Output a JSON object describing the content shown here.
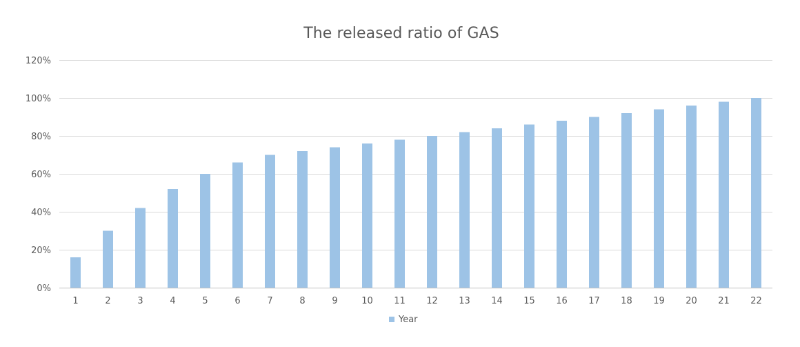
{
  "chart_data": {
    "type": "bar",
    "title": "The released ratio of GAS",
    "xlabel": "",
    "ylabel": "",
    "categories": [
      "1",
      "2",
      "3",
      "4",
      "5",
      "6",
      "7",
      "8",
      "9",
      "10",
      "11",
      "12",
      "13",
      "14",
      "15",
      "16",
      "17",
      "18",
      "19",
      "20",
      "21",
      "22"
    ],
    "series": [
      {
        "name": "Year",
        "values": [
          16,
          30,
          42,
          52,
          60,
          66,
          70,
          72,
          74,
          76,
          78,
          80,
          82,
          84,
          86,
          88,
          90,
          92,
          94,
          96,
          98,
          100
        ]
      }
    ],
    "ylim": [
      0,
      120
    ],
    "yticks": [
      0,
      20,
      40,
      60,
      80,
      100,
      120
    ],
    "ytick_labels": [
      "0%",
      "20%",
      "40%",
      "60%",
      "80%",
      "100%",
      "120%"
    ],
    "grid": true,
    "legend_position": "bottom",
    "colors": {
      "bar": "#9DC3E6",
      "grid": "#D9D9D9",
      "axis": "#BFBFBF",
      "text": "#595959"
    }
  }
}
